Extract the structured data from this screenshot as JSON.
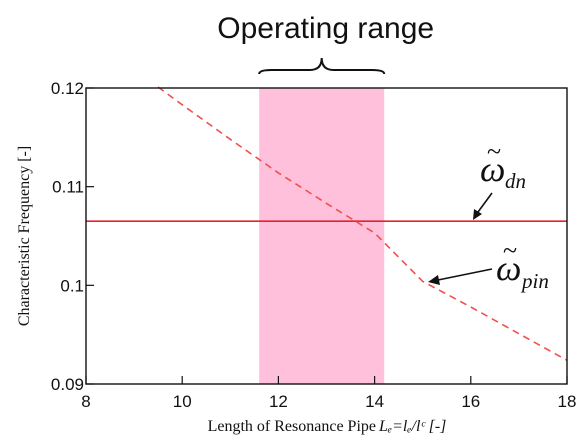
{
  "chart_data": {
    "type": "line",
    "title": "",
    "xlabel": "Length of Resonance Pipe",
    "xlabel_math": "Lₑ=lₑ/lᶜ [-]",
    "ylabel": "Characteristic Frequency [-]",
    "xlim": [
      8,
      18
    ],
    "ylim": [
      0.09,
      0.12
    ],
    "x_ticks": [
      "8",
      "10",
      "12",
      "14",
      "16",
      "18"
    ],
    "y_ticks": [
      "0.09",
      "0.1",
      "0.11",
      "0.12"
    ],
    "grid": false,
    "legend": "none",
    "band": {
      "label": "Operating range",
      "x_start": 11.6,
      "x_end": 14.2,
      "color": "#ffc0dc"
    },
    "series": [
      {
        "name": "ωdn",
        "symbol": "ω",
        "subscript": "dn",
        "style": "solid",
        "color": "#e8202a",
        "x": [
          8,
          18
        ],
        "y": [
          0.1065,
          0.1065
        ]
      },
      {
        "name": "ωpin",
        "symbol": "ω",
        "subscript": "pin",
        "style": "dashed",
        "color": "#f05050",
        "x": [
          9.5,
          10,
          11,
          12,
          13,
          14,
          15,
          16,
          17,
          18
        ],
        "y": [
          0.1201,
          0.1183,
          0.1148,
          0.1114,
          0.1083,
          0.1053,
          0.1004,
          0.0978,
          0.0951,
          0.0924
        ]
      }
    ]
  }
}
